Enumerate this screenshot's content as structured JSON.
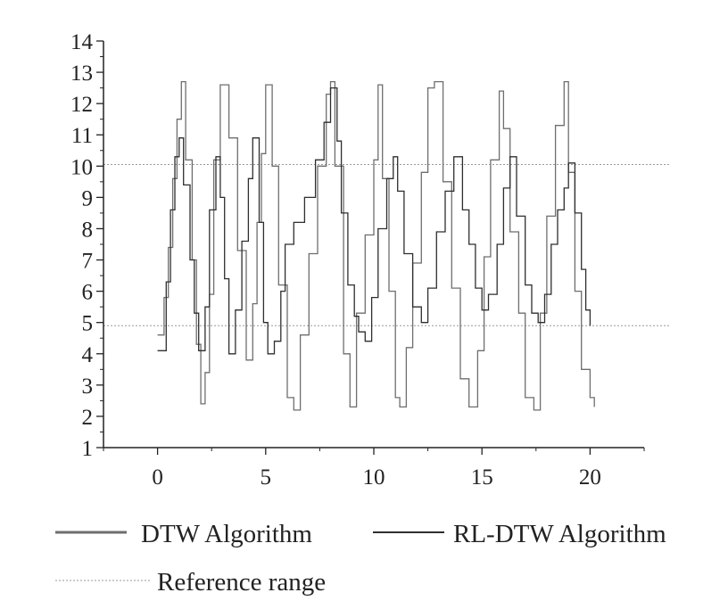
{
  "chart_data": {
    "type": "line",
    "title": "",
    "xlabel": "",
    "ylabel": "",
    "xlim": [
      -2.5,
      22.5
    ],
    "ylim": [
      1,
      14
    ],
    "x_ticks": [
      0,
      5,
      10,
      15,
      20
    ],
    "y_ticks": [
      1,
      2,
      3,
      4,
      5,
      6,
      7,
      8,
      9,
      10,
      11,
      12,
      13,
      14
    ],
    "grid": false,
    "legend_position": "bottom",
    "colors": {
      "dtw": "#6e6e6e",
      "rldtw": "#2e2e2e",
      "reference": "#9a9a9a",
      "axis": "#222222"
    },
    "reference_range": {
      "name": "Reference range",
      "values": [
        4.9,
        10.05
      ]
    },
    "series": [
      {
        "name": "DTW Algorithm",
        "style": "step",
        "x": [
          0.0,
          0.3,
          0.5,
          0.7,
          0.9,
          1.1,
          1.3,
          1.6,
          1.8,
          2.0,
          2.2,
          2.4,
          2.6,
          2.9,
          3.3,
          3.7,
          4.1,
          4.4,
          4.6,
          4.8,
          5.0,
          5.3,
          5.6,
          6.0,
          6.3,
          6.6,
          7.0,
          7.4,
          7.8,
          8.0,
          8.2,
          8.6,
          8.9,
          9.2,
          9.6,
          10.0,
          10.2,
          10.4,
          10.7,
          11.0,
          11.2,
          11.5,
          11.8,
          12.2,
          12.5,
          12.8,
          13.2,
          13.6,
          14.0,
          14.4,
          14.8,
          15.1,
          15.4,
          15.8,
          16.0,
          16.3,
          16.7,
          17.0,
          17.4,
          17.7,
          18.0,
          18.4,
          18.8,
          19.0,
          19.3,
          19.6,
          20.0,
          20.2
        ],
        "y": [
          4.6,
          5.8,
          7.4,
          9.6,
          11.5,
          12.7,
          10.2,
          7.0,
          4.3,
          2.4,
          3.4,
          5.9,
          10.2,
          12.6,
          10.9,
          7.3,
          3.8,
          5.6,
          8.2,
          10.4,
          12.6,
          10.0,
          6.2,
          2.6,
          2.2,
          4.6,
          7.2,
          10.0,
          12.3,
          12.7,
          10.0,
          4.0,
          2.3,
          5.3,
          7.8,
          10.2,
          12.6,
          9.6,
          6.0,
          2.6,
          2.3,
          4.2,
          6.9,
          9.8,
          12.5,
          12.7,
          9.5,
          6.1,
          3.2,
          2.3,
          4.1,
          7.1,
          10.2,
          12.4,
          11.2,
          7.9,
          5.3,
          2.6,
          2.2,
          5.3,
          8.4,
          11.3,
          12.7,
          9.8,
          6.0,
          3.5,
          2.6,
          2.3
        ]
      },
      {
        "name": "RL-DTW Algorithm",
        "style": "step",
        "x": [
          0.0,
          0.4,
          0.6,
          0.8,
          1.0,
          1.2,
          1.5,
          1.7,
          1.9,
          2.2,
          2.4,
          2.7,
          2.9,
          3.1,
          3.3,
          3.6,
          3.9,
          4.2,
          4.4,
          4.7,
          4.9,
          5.1,
          5.4,
          5.7,
          5.9,
          6.3,
          6.8,
          7.3,
          7.7,
          8.0,
          8.3,
          8.5,
          8.8,
          9.1,
          9.3,
          9.6,
          9.9,
          10.2,
          10.6,
          10.9,
          11.1,
          11.4,
          11.8,
          12.2,
          12.5,
          12.9,
          13.3,
          13.7,
          14.1,
          14.4,
          14.7,
          15.0,
          15.3,
          15.7,
          16.0,
          16.3,
          16.6,
          17.0,
          17.3,
          17.6,
          17.9,
          18.2,
          18.5,
          18.8,
          19.0,
          19.3,
          19.6,
          19.8,
          20.0
        ],
        "y": [
          4.1,
          6.3,
          8.6,
          10.3,
          10.9,
          9.4,
          7.0,
          5.3,
          4.1,
          5.5,
          8.6,
          10.3,
          9.0,
          6.4,
          4.0,
          5.4,
          7.6,
          9.6,
          10.9,
          8.2,
          5.0,
          4.0,
          4.4,
          6.0,
          7.5,
          8.2,
          9.0,
          10.2,
          11.4,
          12.5,
          10.8,
          8.5,
          6.2,
          5.2,
          4.7,
          4.4,
          5.8,
          8.0,
          9.6,
          10.3,
          9.2,
          7.2,
          5.5,
          5.0,
          6.1,
          7.9,
          9.2,
          10.3,
          8.6,
          7.5,
          6.1,
          5.4,
          5.9,
          7.5,
          9.3,
          10.3,
          8.4,
          6.2,
          5.3,
          5.0,
          5.9,
          7.5,
          8.6,
          9.3,
          10.1,
          8.5,
          6.7,
          5.4,
          4.9
        ]
      }
    ]
  }
}
